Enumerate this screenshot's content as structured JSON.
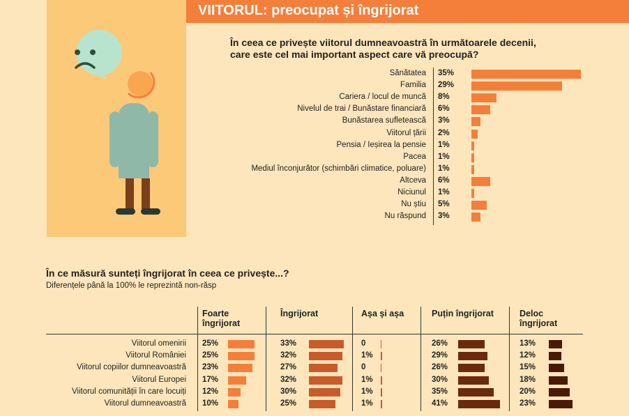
{
  "title": "VIITORUL: preocupat și îngrijorat",
  "colors": {
    "background": "#fde6bc",
    "panel": "#fbc978",
    "accent": "#f47f3b",
    "col_colors": [
      "#f47f3b",
      "#c95a2a",
      "#c95a2a",
      "#6b2a0c",
      "#4a1a05"
    ]
  },
  "illustration": {
    "icons": [
      "worried-face-bubble-icon",
      "person-icon"
    ]
  },
  "chart_data": [
    {
      "type": "bar",
      "title": "În ceea ce privește viitorul dumneavoastră în următoarele decenii, care este cel mai important aspect care vă preocupă?",
      "categories": [
        "Sănătatea",
        "Familia",
        "Cariera / locul de muncă",
        "Nivelul de trai / Bunăstare financiară",
        "Bunăstarea sufletească",
        "Viitorul țării",
        "Pensia / Ieșirea la pensie",
        "Pacea",
        "Mediul înconjurător (schimbări climatice, poluare)",
        "Altceva",
        "Niciunul",
        "Nu știu",
        "Nu răspund"
      ],
      "values": [
        35,
        29,
        8,
        6,
        3,
        2,
        1,
        1,
        1,
        6,
        1,
        5,
        3
      ],
      "value_labels": [
        "35%",
        "29%",
        "8%",
        "6%",
        "3%",
        "2%",
        "1%",
        "1%",
        "1%",
        "6%",
        "1%",
        "5%",
        "3%"
      ],
      "xlim": [
        0,
        35
      ]
    },
    {
      "type": "table",
      "title": "În ce măsură sunteți îngrijorat în ceea ce privește...?",
      "subtitle": "Diferențele până la 100% le reprezintă non-răsp",
      "columns": [
        "Foarte îngrijorat",
        "Îngrijorat",
        "Așa și așa",
        "Puțin îngrijorat",
        "Deloc îngrijorat"
      ],
      "rows": [
        {
          "label": "Viitorul omenirii",
          "values": [
            25,
            33,
            0,
            26,
            13
          ],
          "value_labels": [
            "25%",
            "33%",
            "0",
            "26%",
            "13%"
          ]
        },
        {
          "label": "Viitorul României",
          "values": [
            25,
            32,
            1,
            29,
            12
          ],
          "value_labels": [
            "25%",
            "32%",
            "1%",
            "29%",
            "12%"
          ]
        },
        {
          "label": "Viitorul copiilor dumneavoastră",
          "values": [
            23,
            27,
            0,
            26,
            15
          ],
          "value_labels": [
            "23%",
            "27%",
            "0",
            "26%",
            "15%"
          ]
        },
        {
          "label": "Viitorul Europei",
          "values": [
            17,
            32,
            1,
            30,
            18
          ],
          "value_labels": [
            "17%",
            "32%",
            "1%",
            "30%",
            "18%"
          ]
        },
        {
          "label": "Viitorul comunității în care locuiți",
          "values": [
            12,
            30,
            1,
            35,
            20
          ],
          "value_labels": [
            "12%",
            "30%",
            "1%",
            "35%",
            "20%"
          ]
        },
        {
          "label": "Viitorul dumneavoastră",
          "values": [
            10,
            25,
            1,
            41,
            23
          ],
          "value_labels": [
            "10%",
            "25%",
            "1%",
            "41%",
            "23%"
          ]
        }
      ]
    }
  ]
}
